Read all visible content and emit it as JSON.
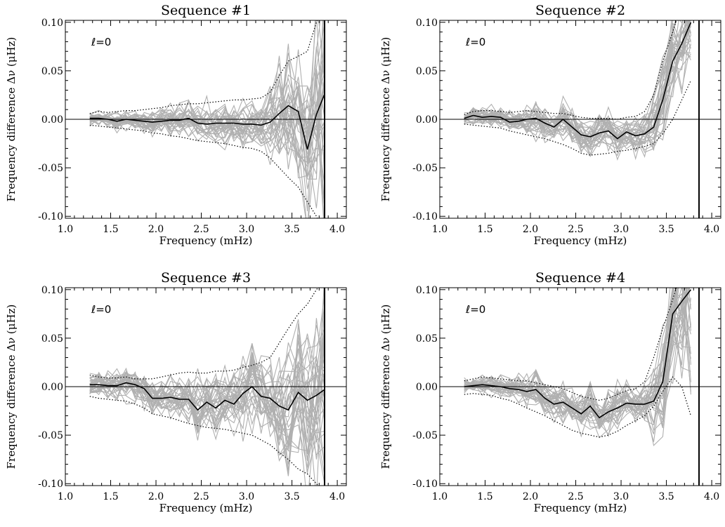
{
  "figure": {
    "xlabel": "Frequency (mHz)",
    "ylabel": "Frequency difference Δν (μHz)"
  },
  "chart_data": [
    {
      "type": "line",
      "title": "Sequence #1",
      "annotation": "ℓ=0",
      "xlabel": "Frequency (mHz)",
      "ylabel": "Frequency difference Δν (μHz)",
      "xlim": [
        1.0,
        4.1
      ],
      "ylim": [
        -0.102,
        0.102
      ],
      "xticks": [
        "1.0",
        "1.5",
        "2.0",
        "2.5",
        "3.0",
        "3.5",
        "4.0"
      ],
      "yticks": [
        "-0.10",
        "-0.05",
        "0.00",
        "0.05",
        "0.10"
      ],
      "grid": false,
      "zero_line": true,
      "vertical_marker_x": 3.86,
      "x": [
        1.27,
        1.37,
        1.47,
        1.57,
        1.67,
        1.77,
        1.87,
        1.96,
        2.06,
        2.16,
        2.26,
        2.36,
        2.46,
        2.56,
        2.66,
        2.76,
        2.86,
        2.96,
        3.06,
        3.16,
        3.26,
        3.36,
        3.46,
        3.57,
        3.67,
        3.77,
        3.86
      ],
      "mean": [
        0.001,
        0.001,
        0.0,
        -0.002,
        0.0,
        -0.001,
        -0.002,
        -0.003,
        -0.002,
        -0.001,
        -0.001,
        0.001,
        -0.004,
        -0.005,
        -0.004,
        -0.004,
        -0.004,
        -0.005,
        -0.005,
        -0.006,
        -0.003,
        0.006,
        0.014,
        0.008,
        -0.031,
        0.005,
        0.026
      ],
      "upper_envelope": [
        0.006,
        0.008,
        0.007,
        0.008,
        0.009,
        0.009,
        0.01,
        0.011,
        0.012,
        0.014,
        0.015,
        0.016,
        0.016,
        0.017,
        0.018,
        0.019,
        0.02,
        0.02,
        0.021,
        0.022,
        0.028,
        0.045,
        0.06,
        0.065,
        0.07,
        0.1,
        0.12
      ],
      "lower_envelope": [
        -0.006,
        -0.007,
        -0.008,
        -0.009,
        -0.01,
        -0.011,
        -0.012,
        -0.014,
        -0.015,
        -0.017,
        -0.018,
        -0.02,
        -0.022,
        -0.023,
        -0.024,
        -0.025,
        -0.027,
        -0.029,
        -0.03,
        -0.033,
        -0.04,
        -0.05,
        -0.06,
        -0.07,
        -0.085,
        -0.1,
        -0.12
      ],
      "individual_sequences": "many grey traces, spread increasing with frequency"
    },
    {
      "type": "line",
      "title": "Sequence #2",
      "annotation": "ℓ=0",
      "xlabel": "Frequency (mHz)",
      "ylabel": "Frequency difference Δν (μHz)",
      "xlim": [
        1.0,
        4.1
      ],
      "ylim": [
        -0.102,
        0.102
      ],
      "xticks": [
        "1.0",
        "1.5",
        "2.0",
        "2.5",
        "3.0",
        "3.5",
        "4.0"
      ],
      "yticks": [
        "-0.10",
        "-0.05",
        "0.00",
        "0.05",
        "0.10"
      ],
      "grid": false,
      "zero_line": true,
      "vertical_marker_x": 3.86,
      "x": [
        1.27,
        1.37,
        1.47,
        1.57,
        1.67,
        1.77,
        1.87,
        1.96,
        2.06,
        2.16,
        2.26,
        2.36,
        2.46,
        2.56,
        2.66,
        2.76,
        2.86,
        2.96,
        3.06,
        3.16,
        3.26,
        3.36,
        3.46,
        3.57,
        3.67,
        3.77
      ],
      "mean": [
        0.001,
        0.004,
        0.002,
        0.003,
        0.002,
        -0.003,
        -0.002,
        0.0,
        0.001,
        -0.004,
        -0.008,
        0.0,
        -0.008,
        -0.016,
        -0.018,
        -0.014,
        -0.012,
        -0.02,
        -0.013,
        -0.017,
        -0.015,
        -0.008,
        0.02,
        0.06,
        0.078,
        0.1
      ],
      "upper_envelope": [
        0.005,
        0.008,
        0.009,
        0.009,
        0.008,
        0.007,
        0.008,
        0.009,
        0.008,
        0.007,
        0.006,
        0.006,
        0.004,
        0.002,
        0.001,
        0.001,
        0.001,
        0.0,
        0.002,
        0.003,
        0.008,
        0.025,
        0.06,
        0.09,
        0.12,
        0.13
      ],
      "lower_envelope": [
        -0.005,
        -0.006,
        -0.007,
        -0.008,
        -0.009,
        -0.012,
        -0.014,
        -0.016,
        -0.018,
        -0.02,
        -0.023,
        -0.026,
        -0.03,
        -0.035,
        -0.037,
        -0.036,
        -0.035,
        -0.033,
        -0.032,
        -0.03,
        -0.028,
        -0.025,
        -0.015,
        0.0,
        0.02,
        0.04
      ],
      "individual_sequences": "many grey traces, spread increasing with frequency"
    },
    {
      "type": "line",
      "title": "Sequence #3",
      "annotation": "ℓ=0",
      "xlabel": "Frequency (mHz)",
      "ylabel": "Frequency difference Δν (μHz)",
      "xlim": [
        1.0,
        4.1
      ],
      "ylim": [
        -0.102,
        0.102
      ],
      "xticks": [
        "1.0",
        "1.5",
        "2.0",
        "2.5",
        "3.0",
        "3.5",
        "4.0"
      ],
      "yticks": [
        "-0.10",
        "-0.05",
        "0.00",
        "0.05",
        "0.10"
      ],
      "grid": false,
      "zero_line": true,
      "vertical_marker_x": 3.86,
      "x": [
        1.27,
        1.37,
        1.47,
        1.57,
        1.67,
        1.77,
        1.87,
        1.96,
        2.06,
        2.16,
        2.26,
        2.36,
        2.46,
        2.56,
        2.66,
        2.76,
        2.86,
        2.96,
        3.06,
        3.16,
        3.26,
        3.36,
        3.46,
        3.57,
        3.67,
        3.77,
        3.86
      ],
      "mean": [
        0.002,
        0.002,
        0.001,
        0.001,
        0.004,
        0.002,
        -0.002,
        -0.012,
        -0.012,
        -0.011,
        -0.013,
        -0.013,
        -0.024,
        -0.016,
        -0.022,
        -0.014,
        -0.018,
        -0.007,
        0.0,
        -0.01,
        -0.012,
        -0.02,
        -0.024,
        -0.006,
        -0.014,
        -0.009,
        -0.003
      ],
      "upper_envelope": [
        0.012,
        0.01,
        0.009,
        0.009,
        0.01,
        0.008,
        0.008,
        0.008,
        0.01,
        0.012,
        0.014,
        0.015,
        0.014,
        0.014,
        0.016,
        0.016,
        0.017,
        0.02,
        0.022,
        0.025,
        0.03,
        0.045,
        0.06,
        0.075,
        0.085,
        0.1,
        0.11
      ],
      "lower_envelope": [
        -0.01,
        -0.012,
        -0.013,
        -0.014,
        -0.015,
        -0.018,
        -0.022,
        -0.028,
        -0.03,
        -0.032,
        -0.035,
        -0.038,
        -0.04,
        -0.042,
        -0.043,
        -0.044,
        -0.046,
        -0.048,
        -0.05,
        -0.055,
        -0.06,
        -0.068,
        -0.075,
        -0.085,
        -0.09,
        -0.1,
        -0.11
      ],
      "individual_sequences": "many grey traces, spread increasing with frequency"
    },
    {
      "type": "line",
      "title": "Sequence #4",
      "annotation": "ℓ=0",
      "xlabel": "Frequency (mHz)",
      "ylabel": "Frequency difference Δν (μHz)",
      "xlim": [
        1.0,
        4.1
      ],
      "ylim": [
        -0.102,
        0.102
      ],
      "xticks": [
        "1.0",
        "1.5",
        "2.0",
        "2.5",
        "3.0",
        "3.5",
        "4.0"
      ],
      "yticks": [
        "-0.10",
        "-0.05",
        "0.00",
        "0.05",
        "0.10"
      ],
      "grid": false,
      "zero_line": true,
      "vertical_marker_x": 3.86,
      "x": [
        1.27,
        1.37,
        1.47,
        1.57,
        1.67,
        1.77,
        1.87,
        1.96,
        2.06,
        2.16,
        2.26,
        2.36,
        2.46,
        2.56,
        2.66,
        2.76,
        2.86,
        2.96,
        3.06,
        3.16,
        3.26,
        3.36,
        3.46,
        3.57,
        3.67,
        3.77
      ],
      "mean": [
        0.0,
        0.001,
        0.002,
        0.001,
        0.0,
        -0.002,
        -0.003,
        -0.005,
        -0.003,
        -0.012,
        -0.018,
        -0.016,
        -0.022,
        -0.028,
        -0.02,
        -0.032,
        -0.026,
        -0.022,
        -0.017,
        -0.018,
        -0.018,
        -0.015,
        0.005,
        0.075,
        0.088,
        0.1
      ],
      "upper_envelope": [
        0.006,
        0.008,
        0.01,
        0.009,
        0.008,
        0.007,
        0.006,
        0.006,
        0.004,
        0.002,
        0.0,
        -0.002,
        -0.006,
        -0.01,
        -0.012,
        -0.014,
        -0.012,
        -0.008,
        -0.004,
        -0.002,
        0.005,
        0.03,
        0.06,
        0.09,
        0.12,
        0.13
      ],
      "lower_envelope": [
        -0.008,
        -0.007,
        -0.008,
        -0.009,
        -0.012,
        -0.014,
        -0.018,
        -0.022,
        -0.026,
        -0.03,
        -0.035,
        -0.04,
        -0.045,
        -0.048,
        -0.05,
        -0.052,
        -0.05,
        -0.046,
        -0.04,
        -0.035,
        -0.03,
        -0.02,
        -0.005,
        0.01,
        0.0,
        -0.03
      ],
      "individual_sequences": "many grey traces, spread increasing with frequency"
    }
  ]
}
